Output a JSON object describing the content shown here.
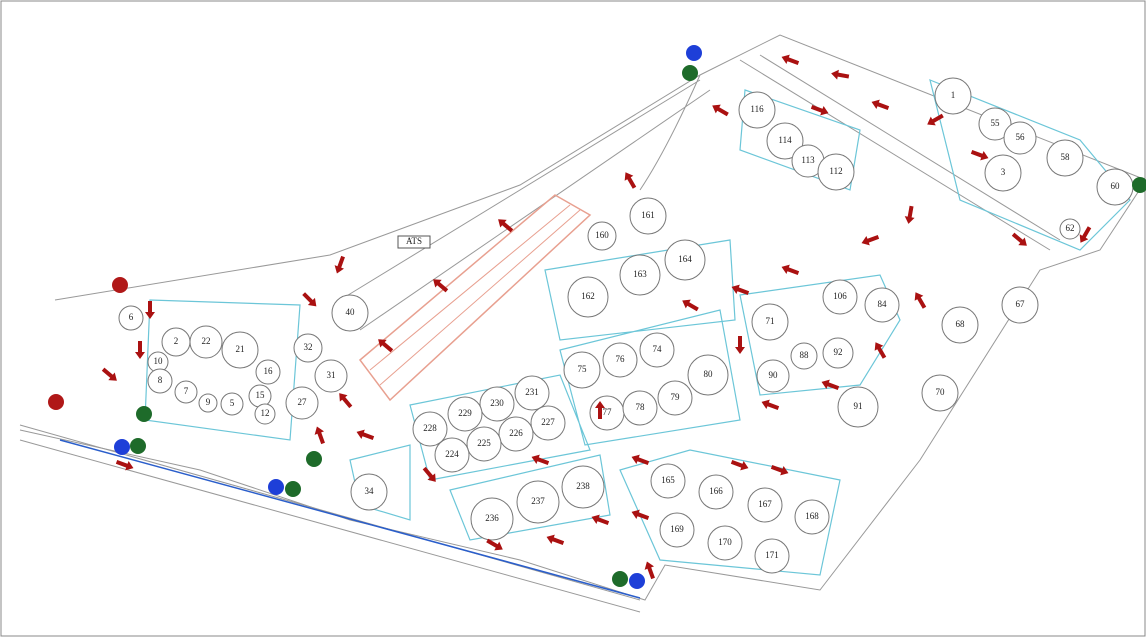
{
  "map": {
    "building_label": "ATS",
    "tanks": [
      "1",
      "55",
      "56",
      "58",
      "3",
      "60",
      "62",
      "116",
      "114",
      "113",
      "112",
      "161",
      "160",
      "163",
      "164",
      "162",
      "106",
      "84",
      "67",
      "71",
      "68",
      "88",
      "92",
      "90",
      "70",
      "91",
      "75",
      "76",
      "74",
      "80",
      "77",
      "78",
      "79",
      "6",
      "2",
      "22",
      "21",
      "10",
      "16",
      "8",
      "7",
      "9",
      "5",
      "15",
      "12",
      "32",
      "31",
      "27",
      "40",
      "231",
      "230",
      "229",
      "228",
      "227",
      "226",
      "225",
      "224",
      "238",
      "237",
      "236",
      "34",
      "165",
      "166",
      "167",
      "168",
      "169",
      "170",
      "171"
    ]
  }
}
